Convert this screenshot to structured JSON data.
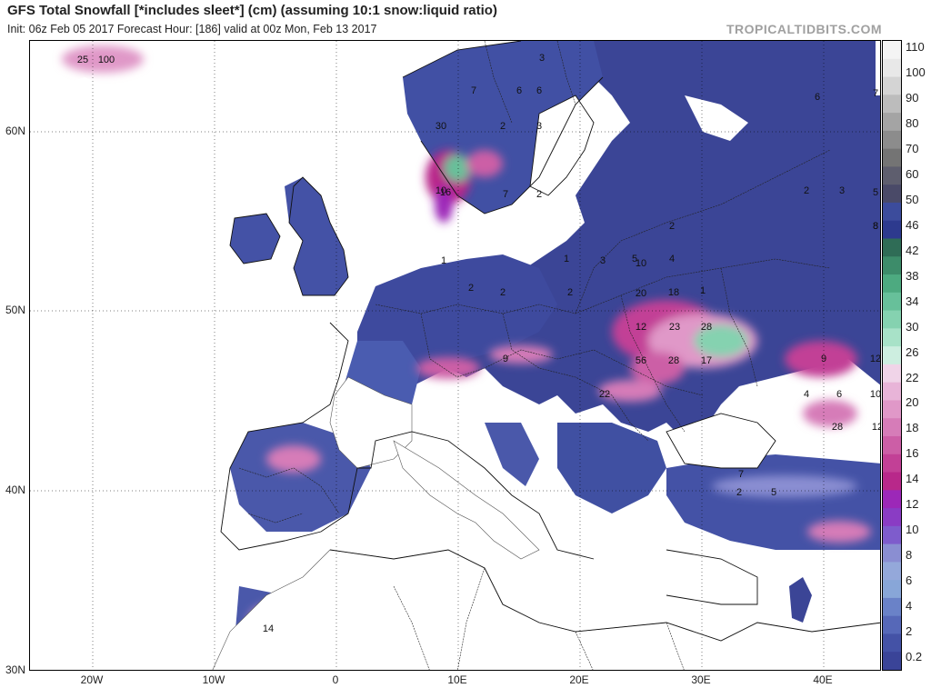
{
  "header": {
    "title": "GFS Total Snowfall [*includes sleet*] (cm) (assuming 10:1 snow:liquid ratio)",
    "subtitle": "Init: 06z Feb 05 2017   Forecast Hour: [186]   valid at 00z Mon, Feb 13 2017",
    "brand": "TROPICALTIDBITS.COM"
  },
  "axes": {
    "lat_labels": [
      "60N",
      "50N",
      "40N",
      "30N"
    ],
    "lon_labels": [
      "20W",
      "10W",
      "0",
      "10E",
      "20E",
      "30E",
      "40E"
    ]
  },
  "colorbar": {
    "labels": [
      "110",
      "100",
      "90",
      "80",
      "70",
      "60",
      "50",
      "46",
      "42",
      "38",
      "34",
      "30",
      "26",
      "22",
      "20",
      "18",
      "16",
      "14",
      "12",
      "10",
      "8",
      "6",
      "4",
      "2",
      "0.2"
    ],
    "colors": [
      "#f4f4f4",
      "#e8e8e8",
      "#d4d4d4",
      "#bcbcbc",
      "#a4a4a4",
      "#8c8c8c",
      "#747474",
      "#5e5e6e",
      "#4a4a68",
      "#3c4c9c",
      "#2d3a8e",
      "#2f6c56",
      "#3d8c6a",
      "#4daa80",
      "#67c09a",
      "#85d2b0",
      "#a8e2c8",
      "#cdeee0",
      "#f0d4e8",
      "#e8b4d8",
      "#e098c8",
      "#d67cb8",
      "#cc5ea6",
      "#c24096",
      "#b8288a",
      "#9c28b8",
      "#8a3cc4",
      "#7e5ccc",
      "#8a8ed2",
      "#94a8da",
      "#88a6d8",
      "#6a82c8",
      "#5668b8",
      "#4452a6",
      "#3a4498"
    ]
  },
  "map_labels": [
    {
      "text": "100"
    },
    {
      "text": "25"
    },
    {
      "text": "30"
    },
    {
      "text": "7"
    },
    {
      "text": "6"
    },
    {
      "text": "3"
    },
    {
      "text": "6"
    },
    {
      "text": "2"
    },
    {
      "text": "3"
    },
    {
      "text": "1"
    },
    {
      "text": "2"
    },
    {
      "text": "2"
    },
    {
      "text": "7"
    },
    {
      "text": "2"
    },
    {
      "text": "16"
    },
    {
      "text": "1"
    },
    {
      "text": "2"
    },
    {
      "text": "3"
    },
    {
      "text": "5"
    },
    {
      "text": "10"
    },
    {
      "text": "4"
    },
    {
      "text": "1"
    },
    {
      "text": "20"
    },
    {
      "text": "18"
    },
    {
      "text": "23"
    },
    {
      "text": "28"
    },
    {
      "text": "12"
    },
    {
      "text": "56"
    },
    {
      "text": "28"
    },
    {
      "text": "17"
    },
    {
      "text": "22"
    },
    {
      "text": "9"
    },
    {
      "text": "9"
    },
    {
      "text": "10"
    },
    {
      "text": "4"
    },
    {
      "text": "6"
    },
    {
      "text": "12"
    },
    {
      "text": "7"
    },
    {
      "text": "5"
    },
    {
      "text": "8"
    },
    {
      "text": "2"
    },
    {
      "text": "3"
    },
    {
      "text": "14"
    },
    {
      "text": "10"
    },
    {
      "text": "2"
    },
    {
      "text": "5"
    },
    {
      "text": "12"
    },
    {
      "text": "28"
    },
    {
      "text": "2"
    },
    {
      "text": "6"
    },
    {
      "text": "7"
    },
    {
      "text": "8"
    }
  ]
}
